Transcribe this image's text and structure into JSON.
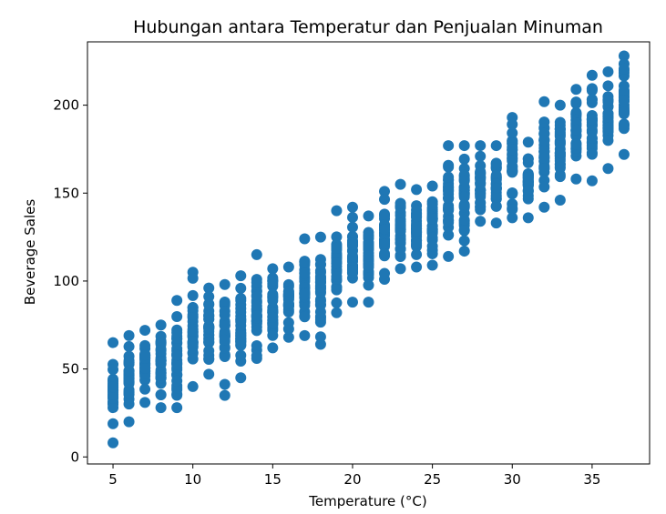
{
  "chart_data": {
    "type": "scatter",
    "title": "Hubungan antara Temperatur dan Penjualan Minuman",
    "xlabel": "Temperature (°C)",
    "ylabel": "Beverage Sales",
    "xlim": [
      3.4,
      38.6
    ],
    "ylim": [
      -4,
      236
    ],
    "xticks": [
      5,
      10,
      15,
      20,
      25,
      30,
      35
    ],
    "yticks": [
      0,
      50,
      100,
      150,
      200
    ],
    "grid": false,
    "marker_color": "#1f77b4",
    "series": [
      {
        "points_per_temperature": 30,
        "columns": [
          {
            "x": 5,
            "y_min": 8,
            "y_max": 65
          },
          {
            "x": 6,
            "y_min": 20,
            "y_max": 69
          },
          {
            "x": 7,
            "y_min": 31,
            "y_max": 72
          },
          {
            "x": 8,
            "y_min": 28,
            "y_max": 75
          },
          {
            "x": 9,
            "y_min": 28,
            "y_max": 89
          },
          {
            "x": 10,
            "y_min": 40,
            "y_max": 105
          },
          {
            "x": 11,
            "y_min": 47,
            "y_max": 96
          },
          {
            "x": 12,
            "y_min": 35,
            "y_max": 98
          },
          {
            "x": 13,
            "y_min": 45,
            "y_max": 103
          },
          {
            "x": 14,
            "y_min": 56,
            "y_max": 115
          },
          {
            "x": 15,
            "y_min": 62,
            "y_max": 107
          },
          {
            "x": 16,
            "y_min": 68,
            "y_max": 108
          },
          {
            "x": 17,
            "y_min": 69,
            "y_max": 124
          },
          {
            "x": 18,
            "y_min": 64,
            "y_max": 125
          },
          {
            "x": 19,
            "y_min": 82,
            "y_max": 140
          },
          {
            "x": 20,
            "y_min": 88,
            "y_max": 142
          },
          {
            "x": 21,
            "y_min": 88,
            "y_max": 137
          },
          {
            "x": 22,
            "y_min": 101,
            "y_max": 151
          },
          {
            "x": 23,
            "y_min": 107,
            "y_max": 155
          },
          {
            "x": 24,
            "y_min": 108,
            "y_max": 152
          },
          {
            "x": 25,
            "y_min": 109,
            "y_max": 154
          },
          {
            "x": 26,
            "y_min": 114,
            "y_max": 177
          },
          {
            "x": 27,
            "y_min": 117,
            "y_max": 177
          },
          {
            "x": 28,
            "y_min": 134,
            "y_max": 177
          },
          {
            "x": 29,
            "y_min": 133,
            "y_max": 177
          },
          {
            "x": 30,
            "y_min": 136,
            "y_max": 193
          },
          {
            "x": 31,
            "y_min": 136,
            "y_max": 179
          },
          {
            "x": 32,
            "y_min": 142,
            "y_max": 202
          },
          {
            "x": 33,
            "y_min": 146,
            "y_max": 200
          },
          {
            "x": 34,
            "y_min": 158,
            "y_max": 209
          },
          {
            "x": 35,
            "y_min": 157,
            "y_max": 217
          },
          {
            "x": 36,
            "y_min": 164,
            "y_max": 219
          },
          {
            "x": 37,
            "y_min": 172,
            "y_max": 228
          }
        ]
      }
    ]
  }
}
